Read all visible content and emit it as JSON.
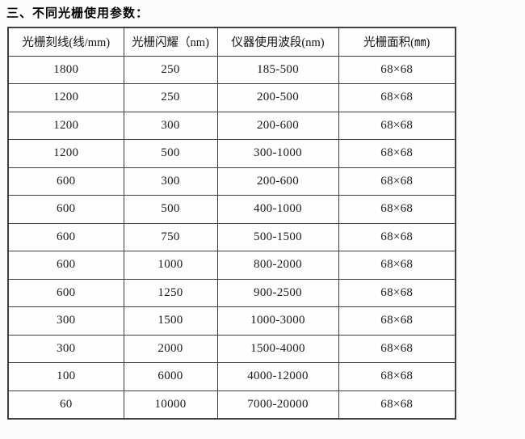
{
  "page": {
    "title": "三、不同光栅使用参数："
  },
  "table": {
    "headers": [
      "光栅刻线(线/mm)",
      "光栅闪耀（nm)",
      "仪器使用波段(nm)",
      "光栅面积(㎜)"
    ],
    "rows": [
      [
        "1800",
        "250",
        "185-500",
        "68×68"
      ],
      [
        "1200",
        "250",
        "200-500",
        "68×68"
      ],
      [
        "1200",
        "300",
        "200-600",
        "68×68"
      ],
      [
        "1200",
        "500",
        "300-1000",
        "68×68"
      ],
      [
        "600",
        "300",
        "200-600",
        "68×68"
      ],
      [
        "600",
        "500",
        "400-1000",
        "68×68"
      ],
      [
        "600",
        "750",
        "500-1500",
        "68×68"
      ],
      [
        "600",
        "1000",
        "800-2000",
        "68×68"
      ],
      [
        "600",
        "1250",
        "900-2500",
        "68×68"
      ],
      [
        "300",
        "1500",
        "1000-3000",
        "68×68"
      ],
      [
        "300",
        "2000",
        "1500-4000",
        "68×68"
      ],
      [
        "100",
        "6000",
        "4000-12000",
        "68×68"
      ],
      [
        "60",
        "10000",
        "7000-20000",
        "68×68"
      ]
    ]
  },
  "colors": {
    "border": "#3f3f3f",
    "text": "#000000",
    "background": "#fcfcfc"
  }
}
